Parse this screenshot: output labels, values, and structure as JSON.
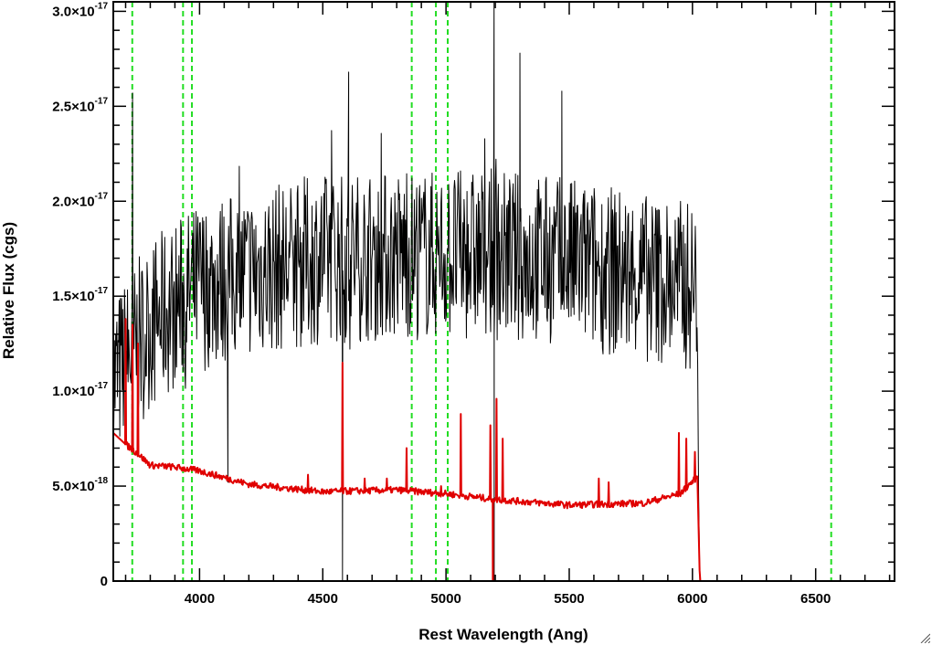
{
  "chart_data": {
    "type": "line",
    "title": "",
    "xlabel": "Rest Wavelength (Ang)",
    "ylabel": "Relative Flux (cgs)",
    "xlim": [
      3650,
      6820
    ],
    "ylim": [
      0,
      3.05e-17
    ],
    "x_ticks": [
      {
        "value": 4000,
        "label": "4000"
      },
      {
        "value": 4500,
        "label": "4500"
      },
      {
        "value": 5000,
        "label": "5000"
      },
      {
        "value": 5500,
        "label": "5500"
      },
      {
        "value": 6000,
        "label": "6000"
      },
      {
        "value": 6500,
        "label": "6500"
      }
    ],
    "y_ticks": [
      {
        "value": 0,
        "mantissa": "0",
        "exponent": ""
      },
      {
        "value": 5e-18,
        "mantissa": "5.0×10",
        "exponent": "-18"
      },
      {
        "value": 1e-17,
        "mantissa": "1.0×10",
        "exponent": "-17"
      },
      {
        "value": 1.5e-17,
        "mantissa": "1.5×10",
        "exponent": "-17"
      },
      {
        "value": 2e-17,
        "mantissa": "2.0×10",
        "exponent": "-17"
      },
      {
        "value": 2.5e-17,
        "mantissa": "2.5×10",
        "exponent": "-17"
      },
      {
        "value": 3e-17,
        "mantissa": "3.0×10",
        "exponent": "-17"
      }
    ],
    "vertical_lines": [
      3727,
      3933,
      3969,
      4861,
      4959,
      5007,
      6563
    ],
    "series": [
      {
        "color": "#000000",
        "style": "noisy",
        "x_range": [
          3650,
          6030
        ],
        "continuum_x": [
          3650,
          3700,
          3750,
          3800,
          3900,
          4000,
          4200,
          4500,
          4800,
          5000,
          5200,
          5500,
          5800,
          6000,
          6030
        ],
        "continuum_y": [
          1.05e-17,
          1.15e-17,
          1.25e-17,
          1.35e-17,
          1.45e-17,
          1.55e-17,
          1.62e-17,
          1.7e-17,
          1.72e-17,
          1.72e-17,
          1.72e-17,
          1.68e-17,
          1.6e-17,
          1.55e-17,
          1.5e-17
        ],
        "noise": 4.5e-18,
        "spikes": [
          {
            "x": 3728,
            "y": 2.57e-17
          },
          {
            "x": 4115,
            "y": 5.2e-18
          },
          {
            "x": 4580,
            "y": 0.0
          },
          {
            "x": 4605,
            "y": 2.68e-17
          },
          {
            "x": 5195,
            "y": 3.05e-17
          },
          {
            "x": 5195.5,
            "y": 0.0
          },
          {
            "x": 5300,
            "y": 2.78e-17
          },
          {
            "x": 5470,
            "y": 2.58e-17
          },
          {
            "x": 6025,
            "y": 4.5e-18
          },
          {
            "x": 6030,
            "y": 0.0
          }
        ]
      },
      {
        "color": "#e00000",
        "style": "model",
        "continuum_x": [
          3650,
          3700,
          3750,
          3800,
          3900,
          4000,
          4200,
          4500,
          4800,
          5000,
          5200,
          5500,
          5800,
          5950,
          6020,
          6030,
          6820
        ],
        "continuum_y": [
          7.8e-18,
          7.2e-18,
          6.7e-18,
          6.1e-18,
          6e-18,
          5.8e-18,
          5.1e-18,
          4.7e-18,
          4.8e-18,
          4.6e-18,
          4.3e-18,
          4e-18,
          4.1e-18,
          4.6e-18,
          5.5e-18,
          0.0,
          0.0
        ],
        "lines": [
          {
            "x": 3700,
            "y": 1.38e-17
          },
          {
            "x": 3728,
            "y": 1.35e-17
          },
          {
            "x": 3750,
            "y": 1.25e-17
          },
          {
            "x": 4440,
            "y": 5.6e-18
          },
          {
            "x": 4580,
            "y": 1.15e-17
          },
          {
            "x": 4670,
            "y": 5.4e-18
          },
          {
            "x": 4760,
            "y": 5.4e-18
          },
          {
            "x": 4840,
            "y": 7e-18
          },
          {
            "x": 4980,
            "y": 5e-18
          },
          {
            "x": 5060,
            "y": 8.8e-18
          },
          {
            "x": 5180,
            "y": 8.2e-18
          },
          {
            "x": 5205,
            "y": 9.6e-18
          },
          {
            "x": 5230,
            "y": 7.5e-18
          },
          {
            "x": 5620,
            "y": 5.4e-18
          },
          {
            "x": 5660,
            "y": 5.2e-18
          },
          {
            "x": 5945,
            "y": 7.8e-18
          },
          {
            "x": 5975,
            "y": 7.5e-18
          },
          {
            "x": 6010,
            "y": 6.8e-18
          }
        ],
        "drops": [
          5190
        ]
      }
    ]
  }
}
